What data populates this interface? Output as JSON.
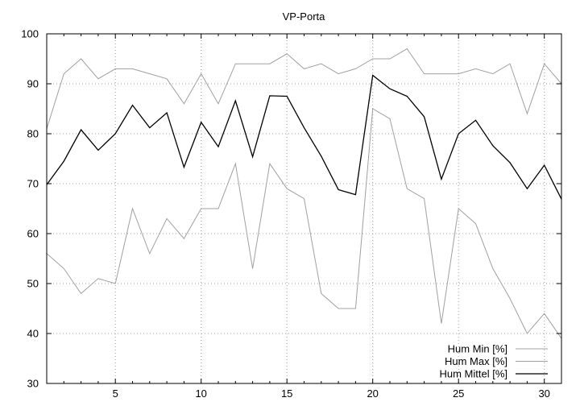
{
  "chart_data": {
    "type": "line",
    "title": "VP-Porta",
    "xlabel": "",
    "ylabel": "",
    "xlim": [
      1,
      31
    ],
    "ylim": [
      30,
      100
    ],
    "x_ticks": [
      5,
      10,
      15,
      20,
      25,
      30
    ],
    "y_ticks": [
      30,
      40,
      50,
      60,
      70,
      80,
      90,
      100
    ],
    "grid": true,
    "legend_position": "bottom-right",
    "x": [
      1,
      2,
      3,
      4,
      5,
      6,
      7,
      8,
      9,
      10,
      11,
      12,
      13,
      14,
      15,
      16,
      17,
      18,
      19,
      20,
      21,
      22,
      23,
      24,
      25,
      26,
      27,
      28,
      29,
      30,
      31
    ],
    "series": [
      {
        "name": "Hum Min [%]",
        "color": "#a0a0a0",
        "values": [
          56,
          53,
          48,
          51,
          50,
          65,
          56,
          63,
          59,
          65,
          65,
          74,
          53,
          74,
          69,
          67,
          48,
          45,
          45,
          85,
          83,
          69,
          67,
          42,
          65,
          62,
          53,
          47,
          40,
          44,
          39
        ]
      },
      {
        "name": "Hum Max [%]",
        "color": "#a0a0a0",
        "values": [
          81,
          92,
          95,
          91,
          93,
          93,
          92,
          91,
          86,
          92,
          86,
          94,
          94,
          94,
          96,
          93,
          94,
          92,
          93,
          95,
          95,
          97,
          92,
          92,
          92,
          93,
          92,
          94,
          84,
          94,
          90
        ]
      },
      {
        "name": "Hum Mittel [%]",
        "color": "#000000",
        "values": [
          69.8,
          74.5,
          80.8,
          76.7,
          80.0,
          85.7,
          81.2,
          84.2,
          73.3,
          82.3,
          77.4,
          86.6,
          75.4,
          87.6,
          87.5,
          81.2,
          75.5,
          68.8,
          67.8,
          91.7,
          89.0,
          87.5,
          83.4,
          70.9,
          80.0,
          82.7,
          77.6,
          74.2,
          69.0,
          73.7,
          66.9
        ]
      }
    ]
  }
}
